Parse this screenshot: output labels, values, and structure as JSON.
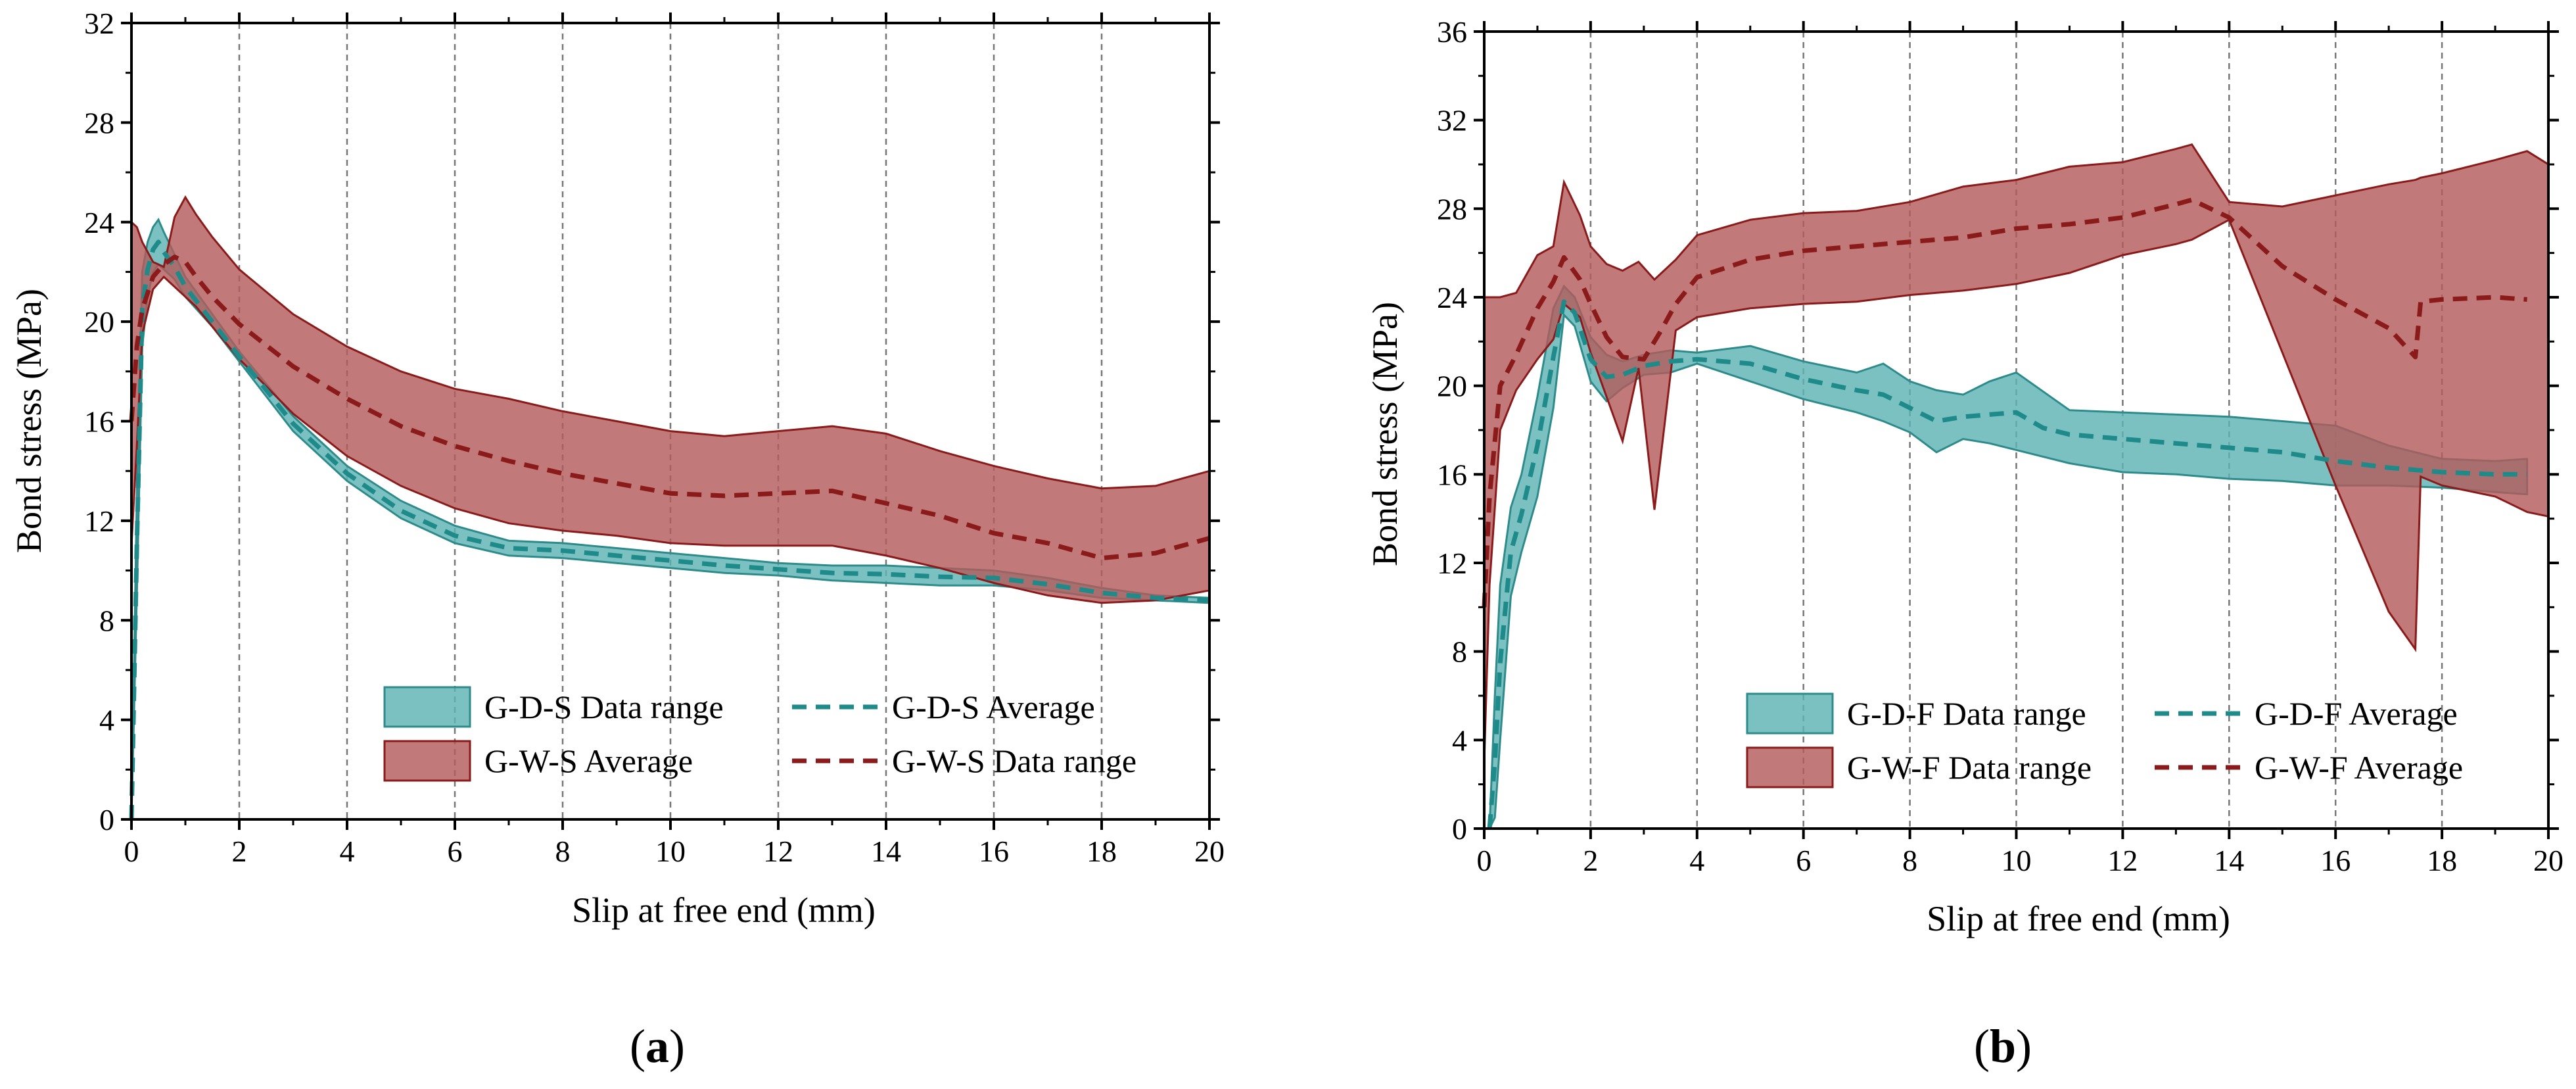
{
  "chart_data": [
    {
      "type": "area",
      "panel": "(a)",
      "panel_letter": "a",
      "xlabel": "Slip at free end (mm)",
      "ylabel": "Bond stress (MPa)",
      "xlim": [
        0,
        20
      ],
      "ylim": [
        0,
        32
      ],
      "xticks": [
        0,
        2,
        4,
        6,
        8,
        10,
        12,
        14,
        16,
        18,
        20
      ],
      "yticks": [
        0,
        4,
        8,
        12,
        16,
        20,
        24,
        28,
        32
      ],
      "grid": "vertical dashed",
      "legend_position": "bottom-right",
      "series": [
        {
          "name": "G-D-S Data range",
          "kind": "band",
          "color": "#5fb3b3",
          "edge": "#2e8b8b",
          "x": [
            0,
            0.1,
            0.2,
            0.3,
            0.4,
            0.5,
            0.6,
            0.8,
            1,
            1.5,
            2,
            3,
            4,
            5,
            6,
            7,
            8,
            9,
            10,
            11,
            12,
            13,
            14,
            15,
            16,
            17,
            18,
            19,
            20
          ],
          "upper": [
            0,
            13,
            22,
            23.2,
            23.8,
            24.1,
            23.6,
            22.7,
            21.8,
            20.3,
            18.8,
            16.2,
            14.2,
            12.8,
            11.8,
            11.2,
            11.1,
            10.9,
            10.7,
            10.5,
            10.3,
            10.2,
            10.2,
            10.1,
            10,
            9.7,
            9.3,
            9,
            8.9
          ],
          "lower": [
            0,
            9,
            19,
            21,
            22,
            22.3,
            22.1,
            21.7,
            21,
            19.8,
            18.4,
            15.6,
            13.6,
            12.1,
            11.1,
            10.6,
            10.5,
            10.3,
            10.1,
            9.9,
            9.8,
            9.6,
            9.5,
            9.4,
            9.4,
            9.2,
            8.9,
            8.8,
            8.7
          ]
        },
        {
          "name": "G-D-S Average",
          "kind": "line",
          "color": "#1f8a8a",
          "x": [
            0,
            0.1,
            0.2,
            0.3,
            0.4,
            0.5,
            0.6,
            0.8,
            1,
            1.5,
            2,
            3,
            4,
            5,
            6,
            7,
            8,
            9,
            10,
            11,
            12,
            13,
            14,
            15,
            16,
            17,
            18,
            19,
            20
          ],
          "y": [
            0,
            11,
            20.5,
            22.1,
            22.9,
            23.2,
            22.8,
            22.2,
            21.4,
            20,
            18.6,
            15.9,
            13.9,
            12.4,
            11.4,
            10.9,
            10.8,
            10.6,
            10.4,
            10.2,
            10.05,
            9.9,
            9.85,
            9.75,
            9.7,
            9.45,
            9.1,
            8.9,
            8.8
          ]
        },
        {
          "name": "G-W-S Average",
          "kind": "band",
          "color": "#b35c5c",
          "edge": "#8b1a1a",
          "x": [
            0,
            0.1,
            0.2,
            0.4,
            0.6,
            0.8,
            1,
            1.2,
            1.5,
            2,
            3,
            4,
            5,
            6,
            7,
            8,
            9,
            10,
            11,
            12,
            13,
            14,
            15,
            16,
            17,
            18,
            19,
            20
          ],
          "upper": [
            24,
            23.8,
            23.2,
            22.4,
            22.2,
            24.2,
            25,
            24.3,
            23.4,
            22.1,
            20.3,
            19,
            18,
            17.3,
            16.9,
            16.4,
            16,
            15.6,
            15.4,
            15.6,
            15.8,
            15.5,
            14.8,
            14.2,
            13.7,
            13.3,
            13.4,
            14
          ],
          "lower": [
            11,
            15,
            19.5,
            21.3,
            21.8,
            21.4,
            21,
            20.6,
            19.8,
            18.5,
            16.3,
            14.6,
            13.4,
            12.5,
            11.9,
            11.6,
            11.4,
            11.1,
            11,
            11,
            11,
            10.6,
            10.1,
            9.5,
            9,
            8.7,
            8.8,
            9.2
          ]
        },
        {
          "name": "G-W-S Data range",
          "kind": "line",
          "color": "#8b1a1a",
          "x": [
            0,
            0.1,
            0.2,
            0.4,
            0.6,
            0.8,
            1,
            1.2,
            1.5,
            2,
            3,
            4,
            5,
            6,
            7,
            8,
            9,
            10,
            11,
            12,
            13,
            14,
            15,
            16,
            17,
            18,
            19,
            20
          ],
          "y": [
            16,
            19,
            20.5,
            21.8,
            22.3,
            22.6,
            22.4,
            21.8,
            21,
            19.9,
            18.2,
            16.9,
            15.8,
            15,
            14.4,
            13.9,
            13.5,
            13.1,
            13,
            13.1,
            13.2,
            12.7,
            12.2,
            11.5,
            11.1,
            10.5,
            10.7,
            11.3
          ]
        }
      ],
      "legend": [
        {
          "label": "G-D-S Data range",
          "kind": "band",
          "color": "#5fb3b3",
          "edge": "#2e8b8b"
        },
        {
          "label": "G-D-S Average",
          "kind": "line",
          "color": "#1f8a8a"
        },
        {
          "label": "G-W-S Average",
          "kind": "band",
          "color": "#b35c5c",
          "edge": "#8b1a1a"
        },
        {
          "label": "G-W-S Data range",
          "kind": "line",
          "color": "#8b1a1a"
        }
      ]
    },
    {
      "type": "area",
      "panel": "(b)",
      "panel_letter": "b",
      "xlabel": "Slip at free end (mm)",
      "ylabel": "Bond stress (MPa)",
      "xlim": [
        0,
        20
      ],
      "ylim": [
        0,
        36
      ],
      "xticks": [
        0,
        2,
        4,
        6,
        8,
        10,
        12,
        14,
        16,
        18,
        20
      ],
      "yticks": [
        0,
        4,
        8,
        12,
        16,
        20,
        24,
        28,
        32,
        36
      ],
      "grid": "vertical dashed",
      "legend_position": "bottom-right",
      "series": [
        {
          "name": "G-D-F Data range",
          "kind": "band",
          "color": "#5fb3b3",
          "edge": "#2e8b8b",
          "x": [
            0.1,
            0.2,
            0.3,
            0.5,
            0.7,
            1,
            1.3,
            1.5,
            1.7,
            2,
            2.3,
            2.6,
            3,
            3.5,
            4,
            5,
            6,
            7,
            7.5,
            8,
            8.5,
            9,
            9.5,
            10,
            11,
            12,
            13,
            14,
            15,
            16,
            17,
            18,
            19,
            19.6
          ],
          "upper": [
            0,
            6,
            11,
            14.5,
            16,
            19.5,
            23.5,
            24.5,
            24,
            22.2,
            21.4,
            21.1,
            21.4,
            21.6,
            21.5,
            21.8,
            21.1,
            20.6,
            21,
            20.2,
            19.8,
            19.6,
            20.2,
            20.6,
            18.9,
            18.8,
            18.7,
            18.6,
            18.4,
            18.2,
            17.3,
            16.7,
            16.6,
            16.7
          ],
          "lower": [
            0,
            0.5,
            4,
            10.5,
            12.5,
            15,
            19,
            23.2,
            22.7,
            20.2,
            19.3,
            19.9,
            20.5,
            20.6,
            21,
            20.2,
            19.4,
            18.8,
            18.4,
            17.9,
            17,
            17.6,
            17.4,
            17.1,
            16.5,
            16.1,
            16,
            15.8,
            15.7,
            15.5,
            15.5,
            15.4,
            15.2,
            15.1
          ]
        },
        {
          "name": "G-D-F Average",
          "kind": "line",
          "color": "#1f8a8a",
          "x": [
            0.1,
            0.2,
            0.3,
            0.5,
            0.7,
            1,
            1.3,
            1.5,
            1.7,
            2,
            2.3,
            2.6,
            3,
            3.5,
            4,
            5,
            6,
            7,
            7.5,
            8,
            8.5,
            9,
            9.5,
            10,
            10.5,
            11,
            12,
            13,
            14,
            15,
            16,
            17,
            18,
            19,
            19.6
          ],
          "y": [
            0,
            3,
            7.5,
            12.5,
            14.2,
            17.3,
            21.3,
            23.8,
            23.3,
            21.2,
            20.4,
            20.5,
            20.9,
            21.1,
            21.2,
            21,
            20.3,
            19.8,
            19.6,
            19,
            18.4,
            18.6,
            18.7,
            18.8,
            18.1,
            17.8,
            17.6,
            17.4,
            17.2,
            17,
            16.6,
            16.3,
            16.1,
            16,
            16
          ]
        },
        {
          "name": "G-W-F Data range",
          "kind": "band",
          "color": "#b35c5c",
          "edge": "#8b1a1a",
          "x": [
            0,
            0.1,
            0.3,
            0.6,
            1,
            1.3,
            1.5,
            1.8,
            2,
            2.3,
            2.6,
            2.9,
            3.2,
            3.6,
            4,
            5,
            6,
            7,
            8,
            9,
            10,
            11,
            12,
            13,
            13.3,
            14,
            15,
            16,
            17,
            17.5,
            17.6,
            18,
            19,
            19.6,
            20
          ],
          "upper": [
            24,
            24,
            24,
            24.2,
            25.9,
            26.3,
            29.2,
            27.7,
            26.3,
            25.5,
            25.2,
            25.6,
            24.8,
            25.7,
            26.8,
            27.5,
            27.8,
            27.9,
            28.3,
            29,
            29.3,
            29.9,
            30.1,
            30.7,
            30.9,
            28.3,
            28.1,
            28.6,
            29.1,
            29.3,
            29.4,
            29.6,
            30.2,
            30.6,
            30
          ],
          "lower": [
            3,
            11,
            18,
            19.8,
            21.2,
            22.1,
            23.7,
            23.1,
            21.5,
            19.5,
            17.5,
            20.8,
            14.4,
            22.5,
            23.1,
            23.5,
            23.7,
            23.8,
            24.1,
            24.3,
            24.6,
            25.1,
            25.9,
            26.4,
            26.6,
            27.5,
            21.5,
            15.5,
            9.8,
            8.1,
            15.9,
            15.5,
            15,
            14.3,
            14.1
          ]
        },
        {
          "name": "G-W-F Average",
          "kind": "line",
          "color": "#8b1a1a",
          "x": [
            0,
            0.1,
            0.3,
            0.6,
            1,
            1.3,
            1.5,
            1.8,
            2,
            2.3,
            2.6,
            3,
            3.3,
            3.6,
            4,
            5,
            6,
            7,
            8,
            9,
            10,
            11,
            12,
            13,
            13.3,
            14,
            15,
            16,
            17,
            17.5,
            17.6,
            18,
            19,
            19.6
          ],
          "y": [
            10,
            15,
            20,
            21.4,
            23.5,
            24.7,
            25.8,
            24.8,
            23.7,
            22.2,
            21.3,
            21.2,
            22.4,
            23.7,
            24.9,
            25.7,
            26.1,
            26.3,
            26.5,
            26.7,
            27.1,
            27.3,
            27.6,
            28.2,
            28.4,
            27.6,
            25.4,
            23.9,
            22.6,
            21.3,
            23.8,
            23.9,
            24,
            23.9
          ]
        }
      ],
      "legend": [
        {
          "label": "G-D-F Data range",
          "kind": "band",
          "color": "#5fb3b3",
          "edge": "#2e8b8b"
        },
        {
          "label": "G-D-F Average",
          "kind": "line",
          "color": "#1f8a8a"
        },
        {
          "label": "G-W-F Data range",
          "kind": "band",
          "color": "#b35c5c",
          "edge": "#8b1a1a"
        },
        {
          "label": "G-W-F Average",
          "kind": "line",
          "color": "#8b1a1a"
        }
      ]
    }
  ]
}
